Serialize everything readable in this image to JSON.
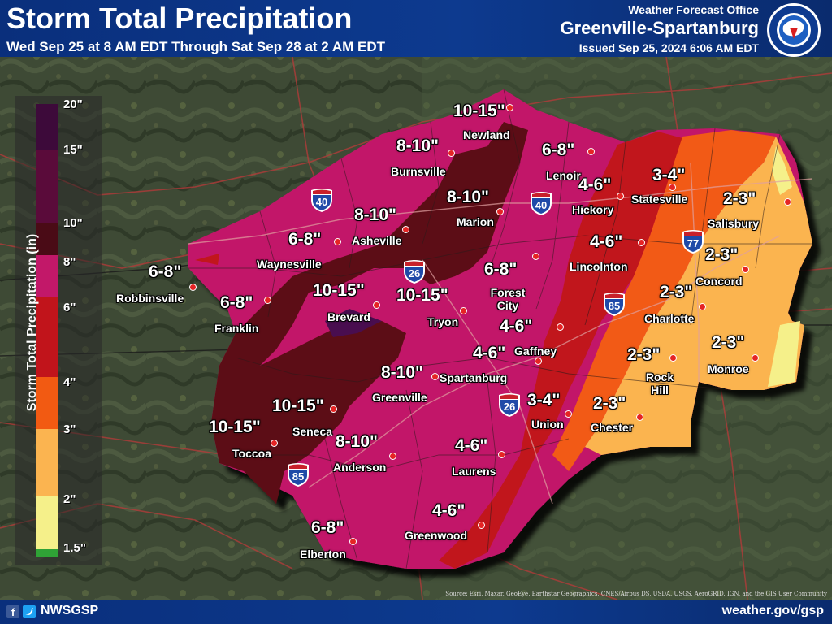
{
  "header": {
    "title": "Storm Total Precipitation",
    "subtitle": "Wed Sep 25 at 8 AM EDT Through Sat Sep 28 at 2 AM EDT",
    "office_label": "Weather Forecast Office",
    "office_name": "Greenville-Spartanburg",
    "issued": "Issued Sep 25, 2024 6:06 AM EDT",
    "logo_text": "NATIONAL WEATHER SERVICE"
  },
  "legend": {
    "title": "Storm Total Precipitation (in)",
    "ticks": [
      {
        "label": "20\"",
        "color": "#3d0a3a"
      },
      {
        "label": "15\"",
        "color": "#5a0b3a"
      },
      {
        "label": "10\"",
        "color": "#5c0e14"
      },
      {
        "label": "8\"",
        "color": "#c21869"
      },
      {
        "label": "6\"",
        "color": "#c1141b"
      },
      {
        "label": "4\"",
        "color": "#f25a12"
      },
      {
        "label": "3\"",
        "color": "#fbb450"
      },
      {
        "label": "2\"",
        "color": "#f5f08a"
      },
      {
        "label": "1.5\"",
        "color": "#2fa236"
      }
    ]
  },
  "interstates": [
    "40",
    "40",
    "26",
    "26",
    "85",
    "85",
    "77"
  ],
  "forecast_labels": [
    {
      "range": "10-15\"",
      "city": "Newland"
    },
    {
      "range": "8-10\"",
      "city": "Burnsville"
    },
    {
      "range": "6-8\"",
      "city": "Lenoir"
    },
    {
      "range": "4-6\"",
      "city": "Hickory"
    },
    {
      "range": "3-4\"",
      "city": "Statesville"
    },
    {
      "range": "2-3\"",
      "city": "Salisbury"
    },
    {
      "range": "8-10\"",
      "city": "Marion"
    },
    {
      "range": "8-10\"",
      "city": "Asheville"
    },
    {
      "range": "6-8\"",
      "city": "Waynesville"
    },
    {
      "range": "6-8\"",
      "city": "Robbinsville"
    },
    {
      "range": "6-8\"",
      "city": "Franklin"
    },
    {
      "range": "10-15\"",
      "city": "Brevard"
    },
    {
      "range": "10-15\"",
      "city": "Tryon"
    },
    {
      "range": "6-8\"",
      "city": "Forest City"
    },
    {
      "range": "4-6\"",
      "city": "Lincolnton"
    },
    {
      "range": "2-3\"",
      "city": "Concord"
    },
    {
      "range": "2-3\"",
      "city": "Charlotte"
    },
    {
      "range": "2-3\"",
      "city": "Monroe"
    },
    {
      "range": "4-6\"",
      "city": "Gaffney"
    },
    {
      "range": "4-6\"",
      "city": "Spartanburg"
    },
    {
      "range": "2-3\"",
      "city": "Rock Hill"
    },
    {
      "range": "8-10\"",
      "city": "Greenville"
    },
    {
      "range": "3-4\"",
      "city": "Union"
    },
    {
      "range": "2-3\"",
      "city": "Chester"
    },
    {
      "range": "10-15\"",
      "city": "Seneca"
    },
    {
      "range": "10-15\"",
      "city": "Toccoa"
    },
    {
      "range": "8-10\"",
      "city": "Anderson"
    },
    {
      "range": "4-6\"",
      "city": "Laurens"
    },
    {
      "range": "4-6\"",
      "city": "Greenwood"
    },
    {
      "range": "6-8\"",
      "city": "Elberton"
    }
  ],
  "footer": {
    "fb_glyph": "f",
    "handle": "NWSGSP",
    "site": "weather.gov/gsp",
    "credit": "Source: Esri, Maxar, GeoEye, Earthstar Geographics, CNES/Airbus DS, USDA, USGS, AeroGRID, IGN, and the GIS User Community"
  },
  "colors": {
    "header_blue": "#0d3a8f",
    "dot_red": "#e52424",
    "zone_maroon": "#5c0e14",
    "zone_magenta": "#c21869",
    "zone_red": "#c1141b",
    "zone_orange": "#f25a12",
    "zone_light_orange": "#fbb450",
    "zone_yellow": "#f5f08a"
  }
}
